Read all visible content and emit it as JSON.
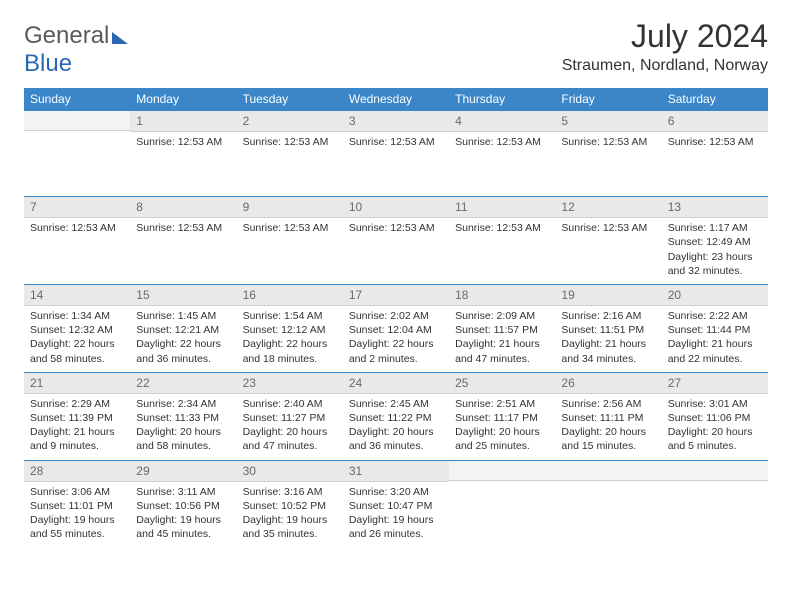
{
  "logo": {
    "word1": "General",
    "word2": "Blue"
  },
  "title": "July 2024",
  "location": "Straumen, Nordland, Norway",
  "colors": {
    "header_bg": "#3a86c8",
    "header_text": "#ffffff",
    "daynum_bg": "#e9e9e9",
    "daynum_text": "#6a6a6a",
    "border": "#3a86c8",
    "body_text": "#333333"
  },
  "day_headers": [
    "Sunday",
    "Monday",
    "Tuesday",
    "Wednesday",
    "Thursday",
    "Friday",
    "Saturday"
  ],
  "weeks": [
    [
      {
        "n": "",
        "lines": []
      },
      {
        "n": "1",
        "lines": [
          "Sunrise: 12:53 AM"
        ]
      },
      {
        "n": "2",
        "lines": [
          "Sunrise: 12:53 AM"
        ]
      },
      {
        "n": "3",
        "lines": [
          "Sunrise: 12:53 AM"
        ]
      },
      {
        "n": "4",
        "lines": [
          "Sunrise: 12:53 AM"
        ]
      },
      {
        "n": "5",
        "lines": [
          "Sunrise: 12:53 AM"
        ]
      },
      {
        "n": "6",
        "lines": [
          "Sunrise: 12:53 AM"
        ]
      }
    ],
    [
      {
        "n": "7",
        "lines": [
          "Sunrise: 12:53 AM"
        ]
      },
      {
        "n": "8",
        "lines": [
          "Sunrise: 12:53 AM"
        ]
      },
      {
        "n": "9",
        "lines": [
          "Sunrise: 12:53 AM"
        ]
      },
      {
        "n": "10",
        "lines": [
          "Sunrise: 12:53 AM"
        ]
      },
      {
        "n": "11",
        "lines": [
          "Sunrise: 12:53 AM"
        ]
      },
      {
        "n": "12",
        "lines": [
          "Sunrise: 12:53 AM"
        ]
      },
      {
        "n": "13",
        "lines": [
          "Sunrise: 1:17 AM",
          "Sunset: 12:49 AM",
          "Daylight: 23 hours and 32 minutes."
        ]
      }
    ],
    [
      {
        "n": "14",
        "lines": [
          "Sunrise: 1:34 AM",
          "Sunset: 12:32 AM",
          "Daylight: 22 hours and 58 minutes."
        ]
      },
      {
        "n": "15",
        "lines": [
          "Sunrise: 1:45 AM",
          "Sunset: 12:21 AM",
          "Daylight: 22 hours and 36 minutes."
        ]
      },
      {
        "n": "16",
        "lines": [
          "Sunrise: 1:54 AM",
          "Sunset: 12:12 AM",
          "Daylight: 22 hours and 18 minutes."
        ]
      },
      {
        "n": "17",
        "lines": [
          "Sunrise: 2:02 AM",
          "Sunset: 12:04 AM",
          "Daylight: 22 hours and 2 minutes."
        ]
      },
      {
        "n": "18",
        "lines": [
          "Sunrise: 2:09 AM",
          "Sunset: 11:57 PM",
          "Daylight: 21 hours and 47 minutes."
        ]
      },
      {
        "n": "19",
        "lines": [
          "Sunrise: 2:16 AM",
          "Sunset: 11:51 PM",
          "Daylight: 21 hours and 34 minutes."
        ]
      },
      {
        "n": "20",
        "lines": [
          "Sunrise: 2:22 AM",
          "Sunset: 11:44 PM",
          "Daylight: 21 hours and 22 minutes."
        ]
      }
    ],
    [
      {
        "n": "21",
        "lines": [
          "Sunrise: 2:29 AM",
          "Sunset: 11:39 PM",
          "Daylight: 21 hours and 9 minutes."
        ]
      },
      {
        "n": "22",
        "lines": [
          "Sunrise: 2:34 AM",
          "Sunset: 11:33 PM",
          "Daylight: 20 hours and 58 minutes."
        ]
      },
      {
        "n": "23",
        "lines": [
          "Sunrise: 2:40 AM",
          "Sunset: 11:27 PM",
          "Daylight: 20 hours and 47 minutes."
        ]
      },
      {
        "n": "24",
        "lines": [
          "Sunrise: 2:45 AM",
          "Sunset: 11:22 PM",
          "Daylight: 20 hours and 36 minutes."
        ]
      },
      {
        "n": "25",
        "lines": [
          "Sunrise: 2:51 AM",
          "Sunset: 11:17 PM",
          "Daylight: 20 hours and 25 minutes."
        ]
      },
      {
        "n": "26",
        "lines": [
          "Sunrise: 2:56 AM",
          "Sunset: 11:11 PM",
          "Daylight: 20 hours and 15 minutes."
        ]
      },
      {
        "n": "27",
        "lines": [
          "Sunrise: 3:01 AM",
          "Sunset: 11:06 PM",
          "Daylight: 20 hours and 5 minutes."
        ]
      }
    ],
    [
      {
        "n": "28",
        "lines": [
          "Sunrise: 3:06 AM",
          "Sunset: 11:01 PM",
          "Daylight: 19 hours and 55 minutes."
        ]
      },
      {
        "n": "29",
        "lines": [
          "Sunrise: 3:11 AM",
          "Sunset: 10:56 PM",
          "Daylight: 19 hours and 45 minutes."
        ]
      },
      {
        "n": "30",
        "lines": [
          "Sunrise: 3:16 AM",
          "Sunset: 10:52 PM",
          "Daylight: 19 hours and 35 minutes."
        ]
      },
      {
        "n": "31",
        "lines": [
          "Sunrise: 3:20 AM",
          "Sunset: 10:47 PM",
          "Daylight: 19 hours and 26 minutes."
        ]
      },
      {
        "n": "",
        "lines": []
      },
      {
        "n": "",
        "lines": []
      },
      {
        "n": "",
        "lines": []
      }
    ]
  ]
}
